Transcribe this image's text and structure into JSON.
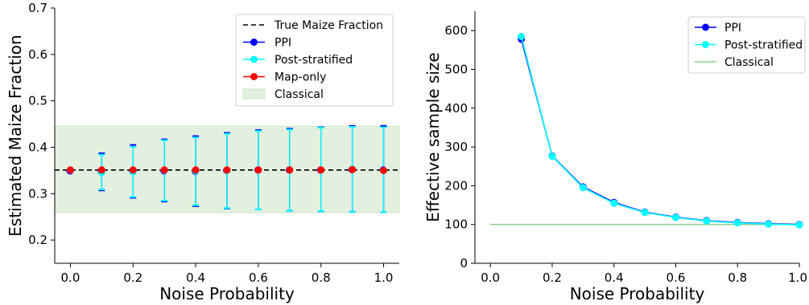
{
  "chart_data": [
    {
      "type": "scatter",
      "xlabel": "Noise Probability",
      "ylabel": "Estimated Maize Fraction",
      "xlim": [
        -0.05,
        1.05
      ],
      "ylim": [
        0.15,
        0.7
      ],
      "xticks": [
        "0.0",
        "0.2",
        "0.4",
        "0.6",
        "0.8",
        "1.0"
      ],
      "yticks": [
        "0.2",
        "0.3",
        "0.4",
        "0.5",
        "0.6",
        "0.7"
      ],
      "legend_position": "upper-right",
      "true_value": 0.351,
      "classical_interval": [
        0.259,
        0.445
      ],
      "x": [
        0.0,
        0.1,
        0.2,
        0.3,
        0.4,
        0.5,
        0.6,
        0.7,
        0.8,
        0.9,
        1.0
      ],
      "series": [
        {
          "name": "PPI",
          "color": "#0000ff",
          "values": [
            0.349,
            0.347,
            0.348,
            0.349,
            0.348,
            0.35,
            0.351,
            0.351,
            0.351,
            0.352,
            0.351
          ],
          "lower": [
            0.349,
            0.307,
            0.291,
            0.283,
            0.273,
            0.268,
            0.266,
            0.263,
            0.262,
            0.261,
            0.26
          ],
          "upper": [
            0.349,
            0.387,
            0.405,
            0.417,
            0.424,
            0.431,
            0.437,
            0.44,
            0.443,
            0.446,
            0.446
          ]
        },
        {
          "name": "Post-stratified",
          "color": "#00ffff",
          "values": [
            0.351,
            0.346,
            0.347,
            0.35,
            0.349,
            0.35,
            0.351,
            0.351,
            0.351,
            0.353,
            0.35
          ],
          "lower": [
            0.351,
            0.309,
            0.293,
            0.285,
            0.275,
            0.269,
            0.266,
            0.263,
            0.262,
            0.261,
            0.26
          ],
          "upper": [
            0.351,
            0.384,
            0.401,
            0.415,
            0.421,
            0.429,
            0.435,
            0.438,
            0.442,
            0.444,
            0.443
          ]
        },
        {
          "name": "Map-only",
          "color": "#ff0000",
          "values": [
            0.351,
            0.351,
            0.351,
            0.351,
            0.351,
            0.351,
            0.351,
            0.351,
            0.351,
            0.352,
            0.35
          ]
        }
      ],
      "legend": [
        "True Maize Fraction",
        "PPI",
        "Post-stratified",
        "Map-only",
        "Classical"
      ]
    },
    {
      "type": "line",
      "xlabel": "Noise Probability",
      "ylabel": "Effective sample size",
      "xlim": [
        -0.05,
        1.0
      ],
      "ylim": [
        0,
        650
      ],
      "xticks": [
        "0.0",
        "0.2",
        "0.4",
        "0.6",
        "0.8",
        "1.0"
      ],
      "yticks": [
        "0",
        "100",
        "200",
        "300",
        "400",
        "500",
        "600"
      ],
      "legend_position": "upper-right",
      "x": [
        0.1,
        0.2,
        0.3,
        0.4,
        0.5,
        0.6,
        0.7,
        0.8,
        0.9,
        1.0
      ],
      "series": [
        {
          "name": "PPI",
          "color": "#0000ff",
          "values": [
            578,
            277,
            197,
            157,
            132,
            119,
            110,
            105,
            102,
            100
          ]
        },
        {
          "name": "Post-stratified",
          "color": "#00ffff",
          "values": [
            585,
            276,
            195,
            155,
            131,
            118,
            109,
            104,
            101,
            99
          ]
        },
        {
          "name": "Classical",
          "color": "#90d090",
          "x": [
            0.0,
            1.0
          ],
          "values": [
            100,
            100
          ]
        }
      ],
      "legend": [
        "PPI",
        "Post-stratified",
        "Classical"
      ]
    }
  ]
}
